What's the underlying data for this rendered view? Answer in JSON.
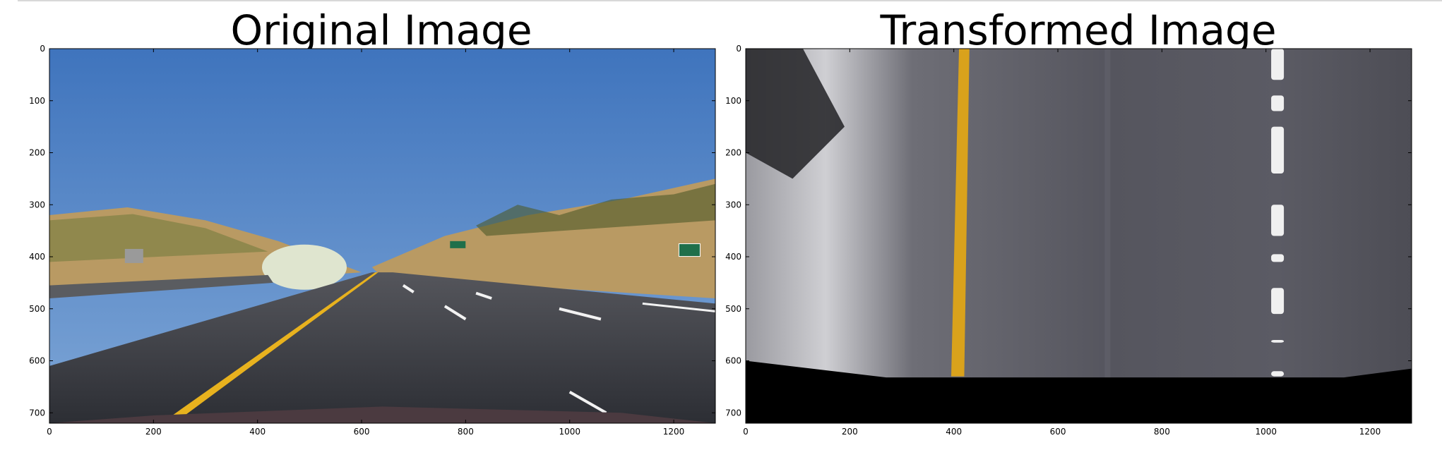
{
  "chart_data": [
    {
      "type": "image",
      "title": "Original Image",
      "xlabel": "",
      "ylabel": "",
      "xlim": [
        0,
        1280
      ],
      "ylim": [
        720,
        0
      ],
      "x_ticks": [
        0,
        200,
        400,
        600,
        800,
        1000,
        1200
      ],
      "y_ticks": [
        0,
        100,
        200,
        300,
        400,
        500,
        600,
        700
      ],
      "x_tick_labels": [
        "0",
        "200",
        "400",
        "600",
        "800",
        "1000",
        "1200"
      ],
      "y_tick_labels": [
        "0",
        "100",
        "200",
        "300",
        "400",
        "500",
        "600",
        "700"
      ],
      "description": "road scene",
      "colors": {
        "sky": "#4a7dc0",
        "road": "#3b3d44",
        "lane_left": "#e8b21e",
        "lane_right": "#f2f2f2",
        "hills": "#b99a63"
      }
    },
    {
      "type": "image",
      "title": "Transformed Image",
      "xlabel": "",
      "ylabel": "",
      "xlim": [
        0,
        1280
      ],
      "ylim": [
        720,
        0
      ],
      "x_ticks": [
        0,
        200,
        400,
        600,
        800,
        1000,
        1200
      ],
      "y_ticks": [
        0,
        100,
        200,
        300,
        400,
        500,
        600,
        700
      ],
      "x_tick_labels": [
        "0",
        "200",
        "400",
        "600",
        "800",
        "1000",
        "1200"
      ],
      "y_tick_labels": [
        "0",
        "100",
        "200",
        "300",
        "400",
        "500",
        "600",
        "700"
      ],
      "description": "bird's-eye warped road",
      "colors": {
        "road": "#5a5a63",
        "lane_left": "#d9a21c",
        "lane_right": "#f0f0f0",
        "black": "#000000"
      }
    }
  ]
}
